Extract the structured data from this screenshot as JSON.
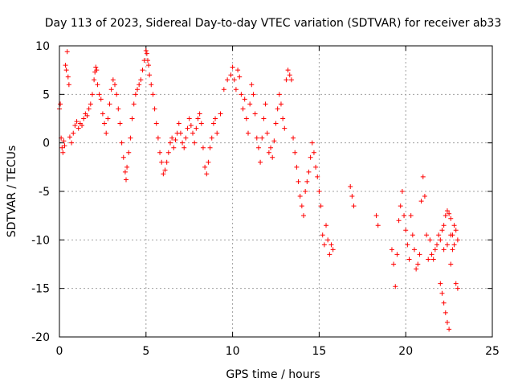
{
  "chart_data": {
    "type": "scatter",
    "title": "Day 113 of 2023, Sidereal Day-to-day VTEC variation (SDTVAR) for receiver ab33",
    "xlabel": "GPS time / hours",
    "ylabel": "SDTVAR / TECUs",
    "xlim": [
      0,
      25
    ],
    "ylim": [
      -20,
      10
    ],
    "xticks": [
      0,
      5,
      10,
      15,
      20,
      25
    ],
    "yticks": [
      -20,
      -15,
      -10,
      -5,
      0,
      5,
      10
    ],
    "grid": true,
    "marker": "+",
    "color": "#ff0000",
    "series": [
      {
        "name": "SDTVAR",
        "points": [
          [
            0.0,
            3.5
          ],
          [
            0.05,
            4.0
          ],
          [
            0.1,
            0.5
          ],
          [
            0.15,
            -0.5
          ],
          [
            0.2,
            -1.0
          ],
          [
            0.25,
            0.2
          ],
          [
            0.3,
            -0.3
          ],
          [
            0.35,
            8.0
          ],
          [
            0.4,
            7.5
          ],
          [
            0.45,
            9.4
          ],
          [
            0.5,
            6.8
          ],
          [
            0.55,
            6.0
          ],
          [
            0.6,
            0.6
          ],
          [
            0.7,
            0.0
          ],
          [
            0.8,
            1.0
          ],
          [
            0.9,
            1.8
          ],
          [
            1.0,
            2.2
          ],
          [
            1.1,
            1.5
          ],
          [
            1.2,
            2.0
          ],
          [
            1.3,
            1.8
          ],
          [
            1.4,
            2.5
          ],
          [
            1.5,
            3.0
          ],
          [
            1.6,
            2.8
          ],
          [
            1.7,
            3.5
          ],
          [
            1.8,
            4.0
          ],
          [
            1.9,
            5.0
          ],
          [
            2.0,
            6.5
          ],
          [
            2.05,
            7.3
          ],
          [
            2.1,
            7.8
          ],
          [
            2.15,
            7.5
          ],
          [
            2.2,
            6.0
          ],
          [
            2.3,
            5.0
          ],
          [
            2.4,
            4.5
          ],
          [
            2.5,
            3.0
          ],
          [
            2.6,
            2.0
          ],
          [
            2.7,
            1.0
          ],
          [
            2.8,
            2.5
          ],
          [
            2.9,
            4.0
          ],
          [
            3.0,
            5.5
          ],
          [
            3.1,
            6.5
          ],
          [
            3.2,
            6.0
          ],
          [
            3.3,
            5.0
          ],
          [
            3.4,
            3.5
          ],
          [
            3.5,
            2.0
          ],
          [
            3.6,
            0.0
          ],
          [
            3.7,
            -1.5
          ],
          [
            3.8,
            -3.0
          ],
          [
            3.85,
            -3.8
          ],
          [
            3.9,
            -2.5
          ],
          [
            4.0,
            -1.0
          ],
          [
            4.1,
            0.5
          ],
          [
            4.2,
            2.5
          ],
          [
            4.3,
            4.0
          ],
          [
            4.4,
            5.0
          ],
          [
            4.5,
            5.5
          ],
          [
            4.6,
            6.0
          ],
          [
            4.7,
            6.5
          ],
          [
            4.8,
            7.5
          ],
          [
            4.9,
            8.5
          ],
          [
            5.0,
            9.5
          ],
          [
            5.05,
            9.2
          ],
          [
            5.1,
            8.5
          ],
          [
            5.15,
            8.0
          ],
          [
            5.2,
            7.0
          ],
          [
            5.3,
            6.0
          ],
          [
            5.4,
            5.0
          ],
          [
            5.5,
            3.5
          ],
          [
            5.6,
            2.0
          ],
          [
            5.7,
            0.5
          ],
          [
            5.8,
            -1.0
          ],
          [
            5.9,
            -2.0
          ],
          [
            6.0,
            -3.2
          ],
          [
            6.1,
            -2.8
          ],
          [
            6.2,
            -2.0
          ],
          [
            6.3,
            -1.0
          ],
          [
            6.4,
            0.0
          ],
          [
            6.5,
            0.5
          ],
          [
            6.6,
            -0.5
          ],
          [
            6.7,
            0.3
          ],
          [
            6.8,
            1.0
          ],
          [
            6.9,
            2.0
          ],
          [
            7.0,
            1.0
          ],
          [
            7.1,
            0.0
          ],
          [
            7.2,
            -0.5
          ],
          [
            7.3,
            0.5
          ],
          [
            7.4,
            1.5
          ],
          [
            7.5,
            2.5
          ],
          [
            7.6,
            1.8
          ],
          [
            7.7,
            1.0
          ],
          [
            7.8,
            0.0
          ],
          [
            7.9,
            1.5
          ],
          [
            8.0,
            2.5
          ],
          [
            8.1,
            3.0
          ],
          [
            8.2,
            2.0
          ],
          [
            8.3,
            -0.5
          ],
          [
            8.4,
            -2.5
          ],
          [
            8.5,
            -3.2
          ],
          [
            8.6,
            -2.0
          ],
          [
            8.7,
            -0.5
          ],
          [
            8.8,
            0.5
          ],
          [
            8.9,
            2.0
          ],
          [
            9.0,
            2.5
          ],
          [
            9.1,
            1.0
          ],
          [
            9.3,
            3.0
          ],
          [
            9.5,
            5.5
          ],
          [
            9.7,
            6.5
          ],
          [
            9.9,
            7.0
          ],
          [
            10.0,
            7.8
          ],
          [
            10.1,
            6.5
          ],
          [
            10.2,
            5.5
          ],
          [
            10.3,
            7.5
          ],
          [
            10.4,
            6.8
          ],
          [
            10.5,
            5.0
          ],
          [
            10.6,
            3.5
          ],
          [
            10.7,
            4.5
          ],
          [
            10.8,
            2.5
          ],
          [
            10.9,
            1.0
          ],
          [
            11.0,
            4.0
          ],
          [
            11.1,
            6.0
          ],
          [
            11.2,
            5.0
          ],
          [
            11.3,
            3.0
          ],
          [
            11.4,
            0.5
          ],
          [
            11.5,
            -0.5
          ],
          [
            11.6,
            -2.0
          ],
          [
            11.7,
            0.5
          ],
          [
            11.8,
            2.5
          ],
          [
            11.9,
            4.0
          ],
          [
            12.0,
            1.0
          ],
          [
            12.1,
            -1.0
          ],
          [
            12.2,
            -0.5
          ],
          [
            12.3,
            -1.5
          ],
          [
            12.4,
            0.2
          ],
          [
            12.5,
            2.0
          ],
          [
            12.6,
            3.5
          ],
          [
            12.7,
            5.0
          ],
          [
            12.8,
            4.0
          ],
          [
            12.9,
            2.5
          ],
          [
            13.0,
            1.5
          ],
          [
            13.1,
            6.5
          ],
          [
            13.2,
            7.5
          ],
          [
            13.3,
            7.0
          ],
          [
            13.4,
            6.5
          ],
          [
            13.5,
            0.5
          ],
          [
            13.6,
            -1.0
          ],
          [
            13.7,
            -2.5
          ],
          [
            13.8,
            -4.0
          ],
          [
            13.9,
            -5.5
          ],
          [
            14.0,
            -6.5
          ],
          [
            14.1,
            -7.5
          ],
          [
            14.2,
            -5.0
          ],
          [
            14.3,
            -4.0
          ],
          [
            14.4,
            -3.0
          ],
          [
            14.5,
            -1.5
          ],
          [
            14.6,
            0.0
          ],
          [
            14.7,
            -1.0
          ],
          [
            14.8,
            -2.5
          ],
          [
            14.9,
            -3.5
          ],
          [
            15.0,
            -5.0
          ],
          [
            15.1,
            -6.5
          ],
          [
            15.2,
            -9.5
          ],
          [
            15.3,
            -10.5
          ],
          [
            15.4,
            -8.5
          ],
          [
            15.5,
            -10.0
          ],
          [
            15.6,
            -11.5
          ],
          [
            15.7,
            -10.5
          ],
          [
            15.8,
            -11.0
          ],
          [
            16.8,
            -4.5
          ],
          [
            16.9,
            -5.5
          ],
          [
            17.0,
            -6.5
          ],
          [
            18.3,
            -7.5
          ],
          [
            18.4,
            -8.5
          ],
          [
            19.2,
            -11.0
          ],
          [
            19.3,
            -12.5
          ],
          [
            19.4,
            -14.8
          ],
          [
            19.5,
            -11.5
          ],
          [
            19.6,
            -8.0
          ],
          [
            19.7,
            -6.5
          ],
          [
            19.8,
            -5.0
          ],
          [
            19.9,
            -7.5
          ],
          [
            20.0,
            -9.0
          ],
          [
            20.1,
            -10.5
          ],
          [
            20.2,
            -12.0
          ],
          [
            20.3,
            -7.5
          ],
          [
            20.4,
            -9.5
          ],
          [
            20.5,
            -11.0
          ],
          [
            20.6,
            -13.0
          ],
          [
            20.7,
            -12.5
          ],
          [
            20.8,
            -11.5
          ],
          [
            20.9,
            -6.0
          ],
          [
            21.0,
            -3.5
          ],
          [
            21.1,
            -5.5
          ],
          [
            21.2,
            -9.5
          ],
          [
            21.3,
            -12.0
          ],
          [
            21.4,
            -10.0
          ],
          [
            21.5,
            -11.5
          ],
          [
            21.6,
            -12.0
          ],
          [
            21.7,
            -11.0
          ],
          [
            21.8,
            -10.5
          ],
          [
            21.9,
            -9.5
          ],
          [
            22.0,
            -14.5
          ],
          [
            22.1,
            -15.5
          ],
          [
            22.2,
            -16.5
          ],
          [
            22.3,
            -17.5
          ],
          [
            22.4,
            -18.5
          ],
          [
            22.5,
            -19.2
          ],
          [
            22.6,
            -12.5
          ],
          [
            22.7,
            -11.0
          ],
          [
            22.8,
            -10.5
          ],
          [
            22.9,
            -14.5
          ],
          [
            23.0,
            -15.0
          ],
          [
            22.0,
            -10.0
          ],
          [
            22.1,
            -9.0
          ],
          [
            22.2,
            -8.5
          ],
          [
            22.3,
            -7.5
          ],
          [
            22.4,
            -7.0
          ],
          [
            22.5,
            -7.3
          ],
          [
            22.6,
            -7.8
          ],
          [
            22.7,
            -9.5
          ],
          [
            22.8,
            -8.5
          ],
          [
            22.9,
            -9.0
          ],
          [
            23.0,
            -10.0
          ],
          [
            22.2,
            -11.0
          ],
          [
            22.4,
            -10.5
          ],
          [
            22.6,
            -9.5
          ]
        ]
      }
    ]
  }
}
